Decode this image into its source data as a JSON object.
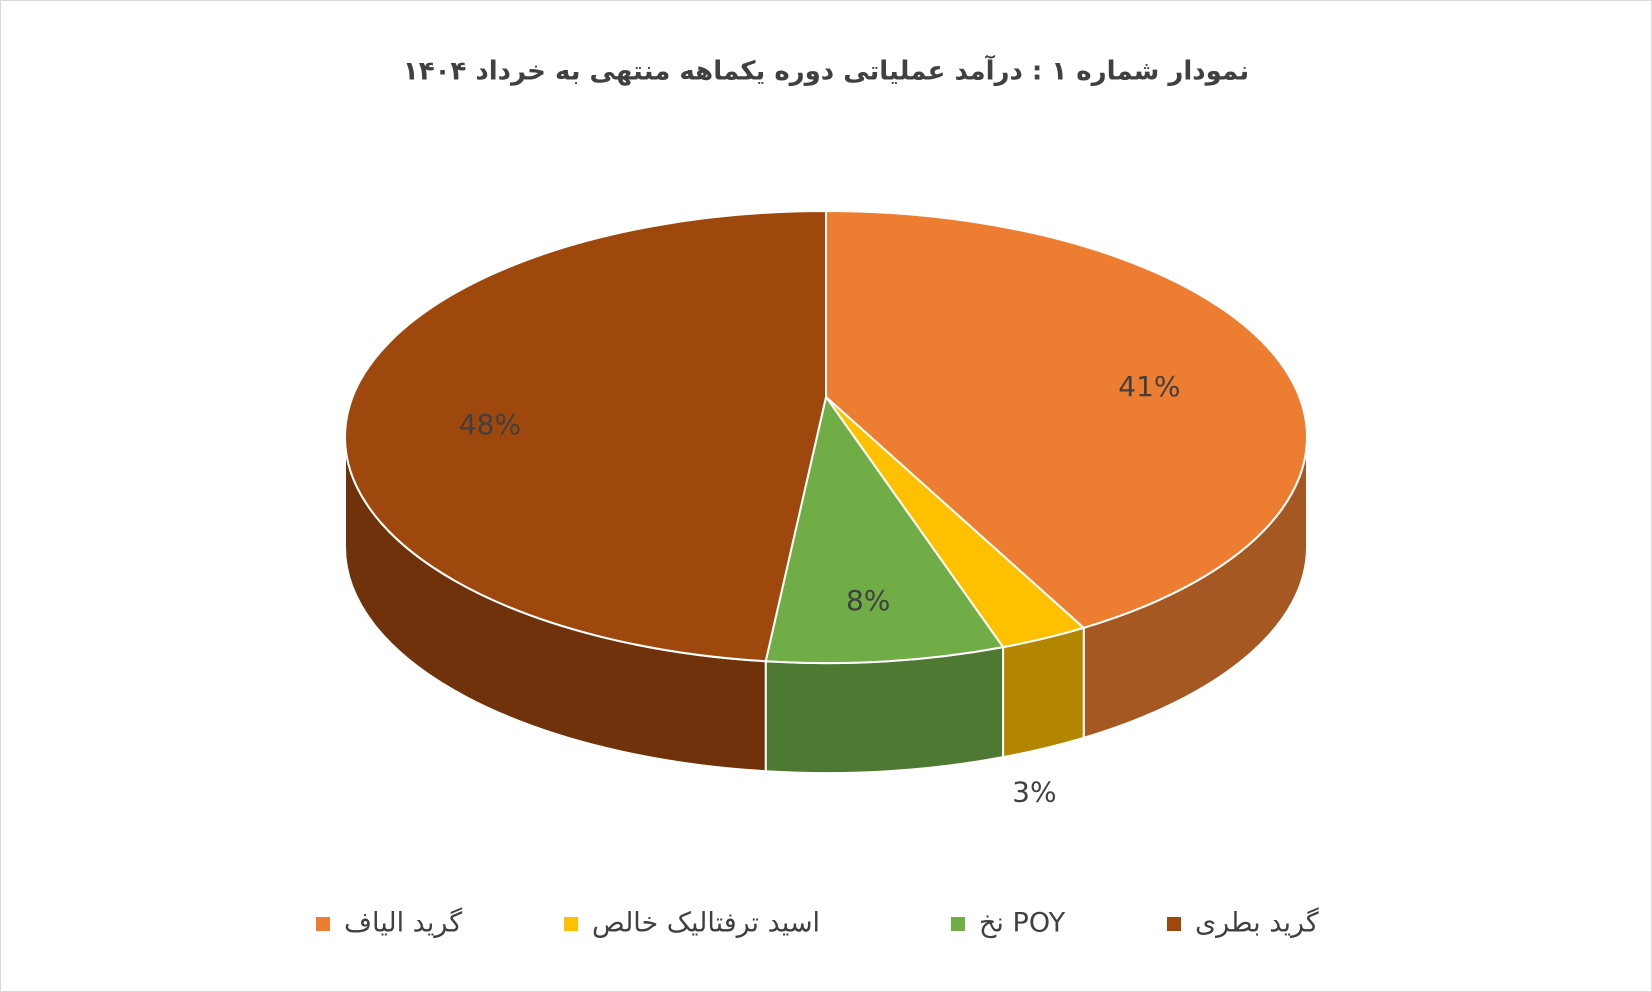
{
  "chart_data": {
    "type": "pie",
    "title": "نمودار شماره ۱ : درآمد عملیاتی دوره یکماهه منتهی به خرداد ۱۴۰۴",
    "categories": [
      "گرید الیاف",
      "اسید ترفتالیک خالص",
      "نخ POY",
      "گرید بطری"
    ],
    "values": [
      41,
      3,
      8,
      48
    ],
    "value_labels": [
      "41%",
      "3%",
      "8%",
      "48%"
    ],
    "colors": [
      "#ED7D31",
      "#FFC000",
      "#70AD47",
      "#9E480E"
    ],
    "legend": "bottom"
  }
}
